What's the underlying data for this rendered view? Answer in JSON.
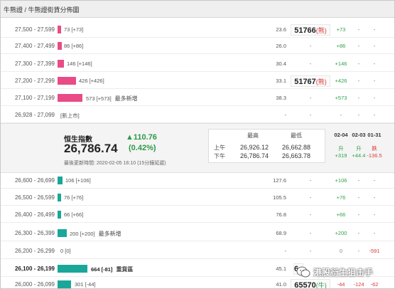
{
  "header": {
    "title": "牛熊證 / 牛熊證街貨分佈圖"
  },
  "bull_rows": [
    {
      "range": "27,500 - 27,599",
      "count": "73 [+73]",
      "tag": "",
      "ratio": "23.6",
      "strike": "51766",
      "strike_tag": "(熊)",
      "c1": "+73",
      "c2": "-",
      "c3": "-"
    },
    {
      "range": "27,400 - 27,499",
      "count": "86 [+86]",
      "tag": "",
      "ratio": "26.0",
      "strike": "-",
      "strike_tag": "",
      "c1": "+86",
      "c2": "-",
      "c3": "-"
    },
    {
      "range": "27,300 - 27,399",
      "count": "146 [+146]",
      "tag": "",
      "ratio": "30.4",
      "strike": "-",
      "strike_tag": "",
      "c1": "+146",
      "c2": "-",
      "c3": "-"
    },
    {
      "range": "27,200 - 27,299",
      "count": "426 [+426]",
      "tag": "",
      "ratio": "33.1",
      "strike": "51767",
      "strike_tag": "(熊)",
      "c1": "+426",
      "c2": "-",
      "c3": "-"
    },
    {
      "range": "27,100 - 27,199",
      "count": "573 [+573]",
      "tag": "最多新增",
      "ratio": "38.3",
      "strike": "-",
      "strike_tag": "",
      "c1": "+573",
      "c2": "-",
      "c3": "-"
    },
    {
      "range": "26,928 - 27,099",
      "count": "[新上市]",
      "tag": "",
      "ratio": "-",
      "strike": "-",
      "strike_tag": "",
      "c1": "-",
      "c2": "-",
      "c3": "-"
    }
  ],
  "index_panel": {
    "name": "恒生指數",
    "value": "26,786.74",
    "change": "▲110.76",
    "change_pct": "(0.42%)",
    "updated": "最後更新時間: 2020-02-05 16:10 (15分鐘延遲)",
    "hl_header_high": "最高",
    "hl_header_low": "最低",
    "sessions": [
      {
        "label": "上午",
        "high": "26,926.12",
        "low": "26,662.88"
      },
      {
        "label": "下午",
        "high": "26,786.74",
        "low": "26,663.78"
      }
    ],
    "history": [
      {
        "date": "02-04",
        "dir": "升",
        "value": "+319"
      },
      {
        "date": "02-03",
        "dir": "升",
        "value": "+44.4"
      },
      {
        "date": "01-31",
        "dir": "跌",
        "value": "-136.5"
      }
    ]
  },
  "bear_rows": [
    {
      "range": "26,600 - 26,699",
      "count": "106 [+106]",
      "tag": "",
      "ratio": "127.6",
      "strike": "-",
      "c1": "+106",
      "c2": "-",
      "c3": "-"
    },
    {
      "range": "26,500 - 26,599",
      "count": "76 [+76]",
      "tag": "",
      "ratio": "105.5",
      "strike": "-",
      "c1": "+76",
      "c2": "-",
      "c3": "-"
    },
    {
      "range": "26,400 - 26,499",
      "count": "66 [+66]",
      "tag": "",
      "ratio": "76.8",
      "strike": "-",
      "c1": "+66",
      "c2": "-",
      "c3": "-"
    },
    {
      "range": "26,300 - 26,399",
      "count": "200 [+200]",
      "tag": "最多新增",
      "ratio": "68.9",
      "strike": "-",
      "c1": "+200",
      "c2": "-",
      "c3": "-"
    },
    {
      "range": "26,200 - 26,299",
      "count": "0 [0]",
      "tag": "",
      "ratio": "-",
      "strike": "-",
      "c1": "0",
      "c2": "-",
      "c3": "-591"
    },
    {
      "range": "26,100 - 26,199",
      "count": "664 [-81]",
      "tag": "重貨區",
      "ratio": "45.1",
      "strike": "6…",
      "c1": "",
      "c2": "",
      "c3": ""
    },
    {
      "range": "26,000 - 26,099",
      "count": "301 [-44]",
      "tag": "",
      "ratio": "41.0",
      "strike": "65570",
      "strike_tag": "(牛)",
      "c1": "-44",
      "c2": "-124",
      "c3": "-62"
    }
  ],
  "watermark": {
    "text": "港股衍生狙击手"
  },
  "colors": {
    "bull_bar": "#e94b86",
    "bear_bar": "#1aa79a",
    "up": "#2a9a48",
    "down": "#d83a3a"
  }
}
